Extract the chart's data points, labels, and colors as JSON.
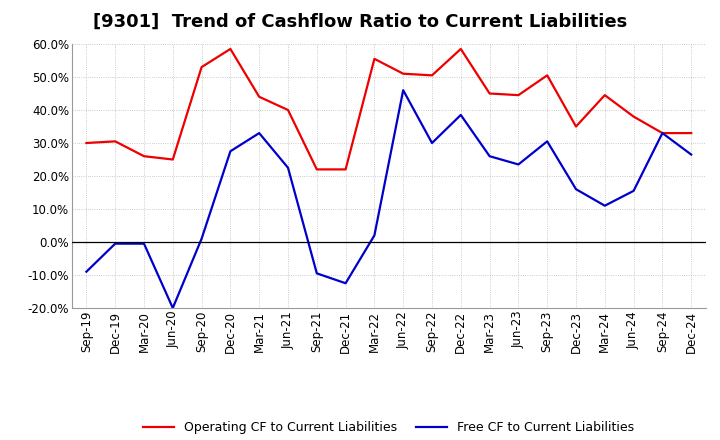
{
  "title": "[9301]  Trend of Cashflow Ratio to Current Liabilities",
  "x_labels": [
    "Sep-19",
    "Dec-19",
    "Mar-20",
    "Jun-20",
    "Sep-20",
    "Dec-20",
    "Mar-21",
    "Jun-21",
    "Sep-21",
    "Dec-21",
    "Mar-22",
    "Jun-22",
    "Sep-22",
    "Dec-22",
    "Mar-23",
    "Jun-23",
    "Sep-23",
    "Dec-23",
    "Mar-24",
    "Jun-24",
    "Sep-24",
    "Dec-24"
  ],
  "operating_cf": [
    30.0,
    30.5,
    26.0,
    25.0,
    53.0,
    58.5,
    44.0,
    40.0,
    22.0,
    22.0,
    55.5,
    51.0,
    50.5,
    58.5,
    45.0,
    44.5,
    50.5,
    35.0,
    44.5,
    38.0,
    33.0,
    33.0
  ],
  "free_cf": [
    -9.0,
    -0.5,
    -0.5,
    -20.0,
    1.0,
    27.5,
    33.0,
    22.5,
    -9.5,
    -12.5,
    2.0,
    46.0,
    30.0,
    38.5,
    26.0,
    23.5,
    30.5,
    16.0,
    11.0,
    15.5,
    33.0,
    26.5
  ],
  "operating_color": "#ee0000",
  "free_color": "#0000cc",
  "ylim": [
    -20.0,
    60.0
  ],
  "yticks": [
    -20.0,
    -10.0,
    0.0,
    10.0,
    20.0,
    30.0,
    40.0,
    50.0,
    60.0
  ],
  "legend_operating": "Operating CF to Current Liabilities",
  "legend_free": "Free CF to Current Liabilities",
  "background_color": "#ffffff",
  "plot_bg_color": "#ffffff",
  "grid_color": "#bbbbbb",
  "title_fontsize": 13,
  "label_fontsize": 8.5,
  "line_width": 1.6
}
